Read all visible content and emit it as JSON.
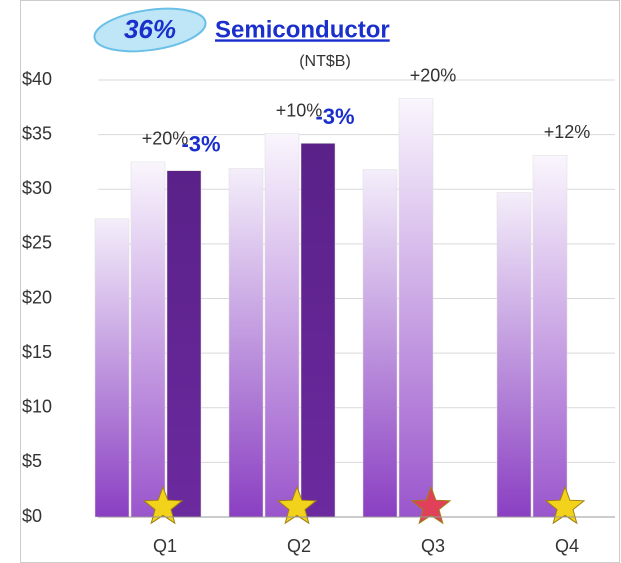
{
  "chart_data": {
    "type": "bar",
    "badge": "36%",
    "title": "Semiconductor",
    "subtitle": "(NT$B)",
    "categories": [
      "Q1",
      "Q2",
      "Q3",
      "Q4"
    ],
    "series": [
      {
        "color": "#8a3fc2",
        "top_color": "#f4eefa",
        "values": [
          27.3,
          31.9,
          31.8,
          29.7
        ]
      },
      {
        "color": "#9a55cc",
        "top_color": "#faf6fd",
        "values": [
          32.5,
          35.1,
          38.3,
          33.1
        ]
      },
      {
        "color": "#6b2a9e",
        "top_color": "#5a2189",
        "values": [
          31.7,
          34.2,
          null,
          null
        ]
      }
    ],
    "growth_labels": [
      "+20%",
      "+10%",
      "+20%",
      "+12%"
    ],
    "change_labels": [
      "-3%",
      "-3%",
      null,
      null
    ],
    "star_colors": [
      "#f2d21b",
      "#f2d21b",
      "#e0405a",
      "#f2d21b"
    ],
    "ylim": [
      0,
      40
    ],
    "yticks": [
      {
        "value": 0,
        "label": "$0"
      },
      {
        "value": 5,
        "label": "$5"
      },
      {
        "value": 10,
        "label": "$10"
      },
      {
        "value": 15,
        "label": "$15"
      },
      {
        "value": 20,
        "label": "$20"
      },
      {
        "value": 25,
        "label": "$25"
      },
      {
        "value": 30,
        "label": "$30"
      },
      {
        "value": 35,
        "label": "$35"
      },
      {
        "value": 40,
        "label": "$40"
      }
    ]
  }
}
